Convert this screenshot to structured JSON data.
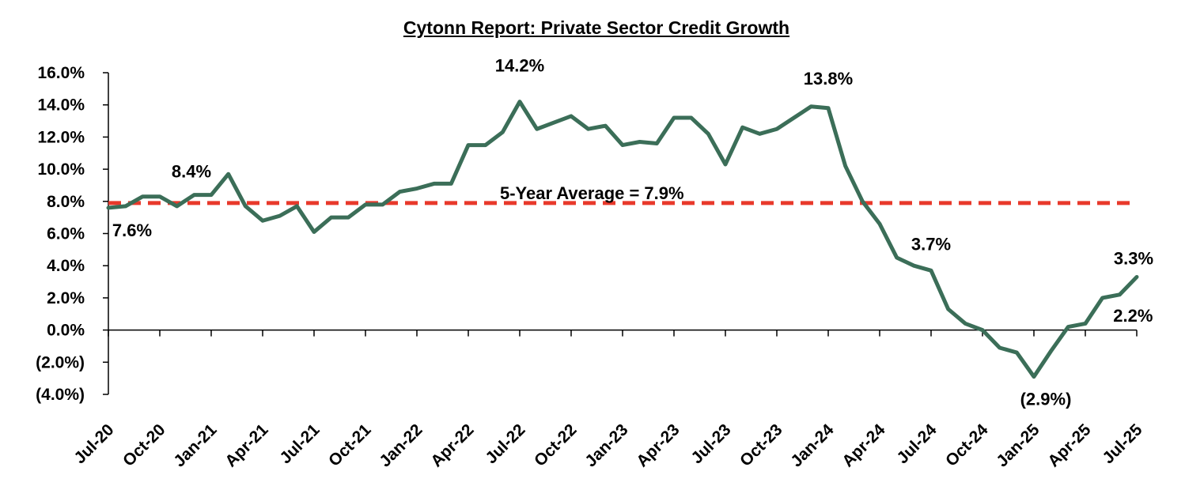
{
  "chart_data": {
    "type": "line",
    "title": "Cytonn Report: Private Sector Credit Growth",
    "xlabel": "",
    "ylabel": "",
    "ylim": [
      -4.0,
      16.0
    ],
    "y_ticks": [
      "16.0%",
      "14.0%",
      "12.0%",
      "10.0%",
      "8.0%",
      "6.0%",
      "4.0%",
      "2.0%",
      "0.0%",
      "(2.0%)",
      "(4.0%)"
    ],
    "y_tick_values": [
      16,
      14,
      12,
      10,
      8,
      6,
      4,
      2,
      0,
      -2,
      -4
    ],
    "x_tick_labels": [
      "Jul-20",
      "Oct-20",
      "Jan-21",
      "Apr-21",
      "Jul-21",
      "Oct-21",
      "Jan-22",
      "Apr-22",
      "Jul-22",
      "Oct-22",
      "Jan-23",
      "Apr-23",
      "Jul-23",
      "Oct-23",
      "Jan-24",
      "Apr-24",
      "Jul-24",
      "Oct-24",
      "Jan-25",
      "Apr-25",
      "Jul-25"
    ],
    "series": [
      {
        "color": "#3b6e58",
        "x": [
          "Jul-20",
          "Aug-20",
          "Sep-20",
          "Oct-20",
          "Nov-20",
          "Dec-20",
          "Jan-21",
          "Feb-21",
          "Mar-21",
          "Apr-21",
          "May-21",
          "Jun-21",
          "Jul-21",
          "Aug-21",
          "Sep-21",
          "Oct-21",
          "Nov-21",
          "Dec-21",
          "Jan-22",
          "Feb-22",
          "Mar-22",
          "Apr-22",
          "May-22",
          "Jun-22",
          "Jul-22",
          "Aug-22",
          "Sep-22",
          "Oct-22",
          "Nov-22",
          "Dec-22",
          "Jan-23",
          "Feb-23",
          "Mar-23",
          "Apr-23",
          "May-23",
          "Jun-23",
          "Jul-23",
          "Aug-23",
          "Sep-23",
          "Oct-23",
          "Nov-23",
          "Dec-23",
          "Jan-24",
          "Feb-24",
          "Mar-24",
          "Apr-24",
          "May-24",
          "Jun-24",
          "Jul-24",
          "Aug-24",
          "Sep-24",
          "Oct-24",
          "Nov-24",
          "Dec-24",
          "Jan-25",
          "Feb-25",
          "Mar-25",
          "Apr-25",
          "May-25",
          "Jun-25",
          "Jul-25"
        ],
        "values": [
          7.6,
          7.7,
          8.3,
          8.3,
          7.7,
          8.4,
          8.4,
          9.7,
          7.7,
          6.8,
          7.1,
          7.7,
          6.1,
          7.0,
          7.0,
          7.8,
          7.8,
          8.6,
          8.8,
          9.1,
          9.1,
          11.5,
          11.5,
          12.3,
          14.2,
          12.5,
          12.9,
          13.3,
          12.5,
          12.7,
          11.5,
          11.7,
          11.6,
          13.2,
          13.2,
          12.2,
          10.3,
          12.6,
          12.2,
          12.5,
          13.2,
          13.9,
          13.8,
          10.2,
          8.0,
          6.6,
          4.5,
          4.0,
          3.7,
          1.3,
          0.4,
          0.0,
          -1.1,
          -1.4,
          -2.9,
          -1.3,
          0.2,
          0.4,
          2.0,
          2.2,
          3.3
        ]
      }
    ],
    "average": {
      "value": 7.9,
      "label": "5-Year Average = 7.9%",
      "color": "#e8392b"
    },
    "annotations": [
      {
        "text": "7.6%",
        "x": "Jul-20"
      },
      {
        "text": "8.4%",
        "x": "Jan-21"
      },
      {
        "text": "14.2%",
        "x": "Jul-22"
      },
      {
        "text": "13.8%",
        "x": "Jan-24"
      },
      {
        "text": "3.7%",
        "x": "Jul-24"
      },
      {
        "text": "(2.9%)",
        "x": "Jan-25"
      },
      {
        "text": "2.2%",
        "x": "Jun-25"
      },
      {
        "text": "3.3%",
        "x": "Jul-25"
      }
    ],
    "grid": false,
    "legend": "none"
  }
}
